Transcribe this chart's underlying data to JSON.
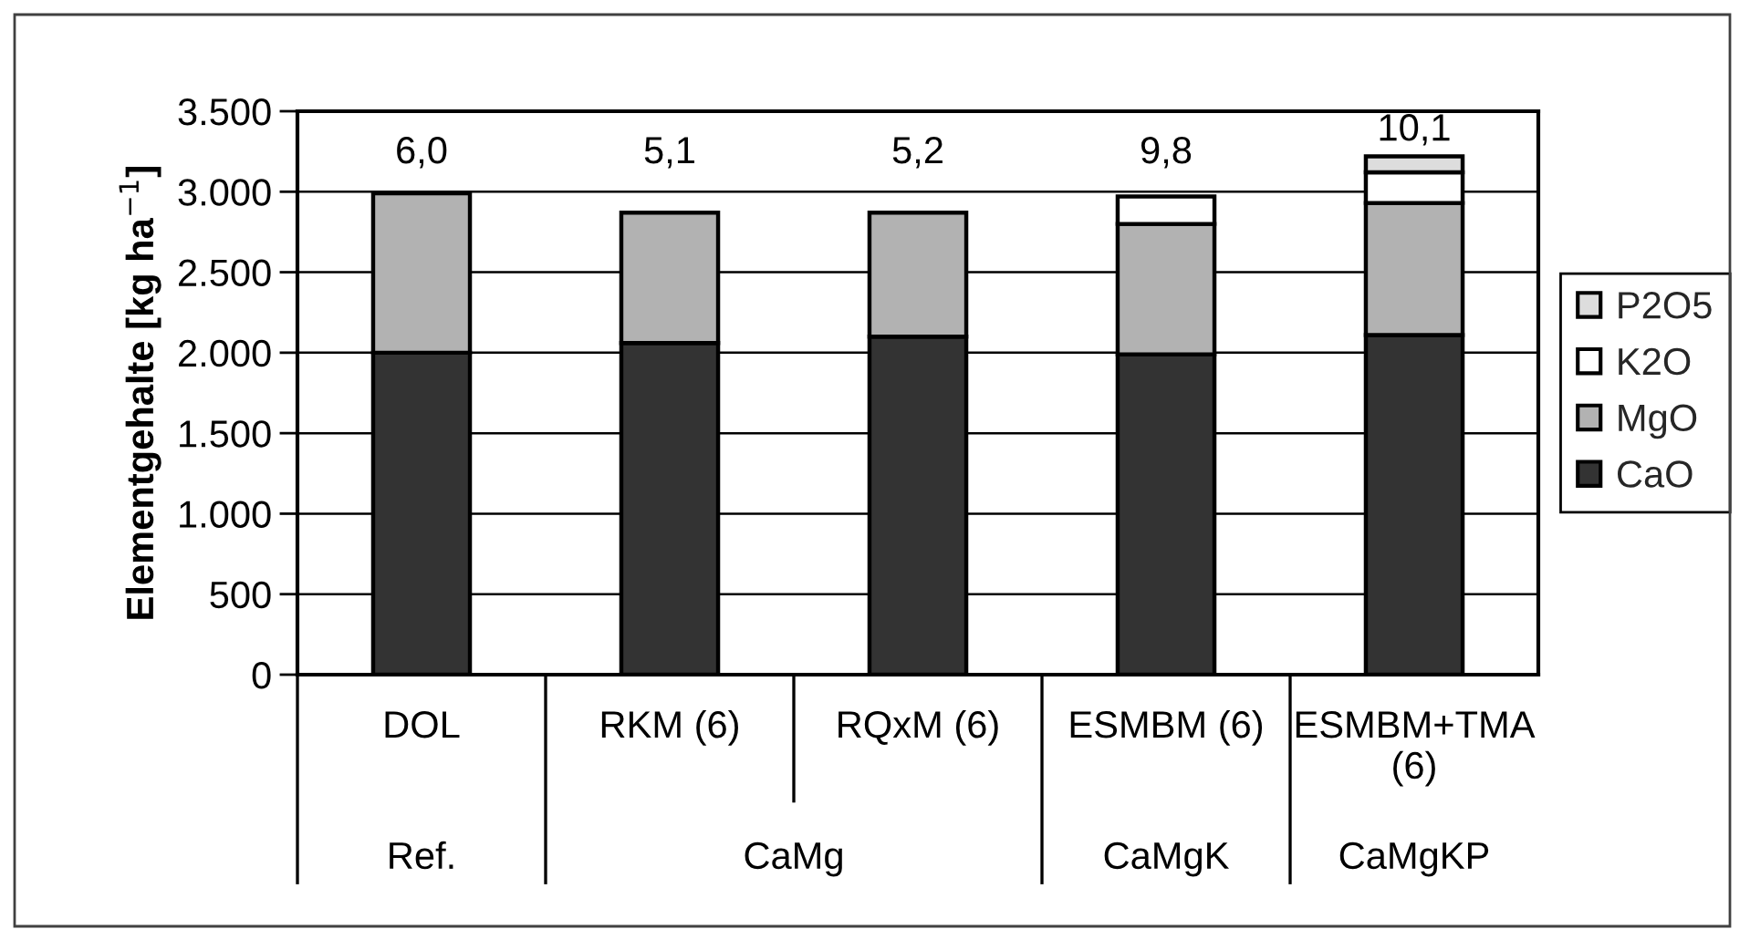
{
  "chart_data": {
    "type": "bar",
    "stacked": true,
    "ylabel": "Elementgehalte [kg ha$^{−1}$]",
    "categories": [
      "DOL",
      "RKM (6)",
      "RQxM (6)",
      "ESMBM (6)",
      "ESMBM+TMA\n(6)"
    ],
    "series": [
      {
        "name": "CaO",
        "color": "#333333",
        "values": [
          2000,
          2060,
          2100,
          1990,
          2110
        ]
      },
      {
        "name": "MgO",
        "color": "#b2b2b2",
        "values": [
          990,
          810,
          770,
          810,
          820
        ]
      },
      {
        "name": "K2O",
        "color": "#ffffff",
        "values": [
          null,
          null,
          null,
          170,
          190
        ]
      },
      {
        "name": "P2O5",
        "color": "#dddddd",
        "values": [
          null,
          null,
          null,
          null,
          100
        ]
      }
    ],
    "ylim": [
      0,
      3500
    ],
    "yticks": [
      0,
      500,
      {
        "value": 1000,
        "label": "1.000"
      },
      {
        "value": 1500,
        "label": "1.500"
      },
      {
        "value": 2000,
        "label": "2.000"
      },
      {
        "value": 2500,
        "label": "2.500"
      },
      {
        "value": 3000,
        "label": "3.000"
      },
      {
        "value": 3500,
        "label": "3.500"
      }
    ],
    "grid": "y",
    "legend": "right",
    "annotations": [
      "6,0",
      "5,1",
      "5,2",
      "9,8",
      "10,1",
      "Ref.",
      "CaMg",
      "CaMgK",
      "CaMgKP"
    ]
  }
}
